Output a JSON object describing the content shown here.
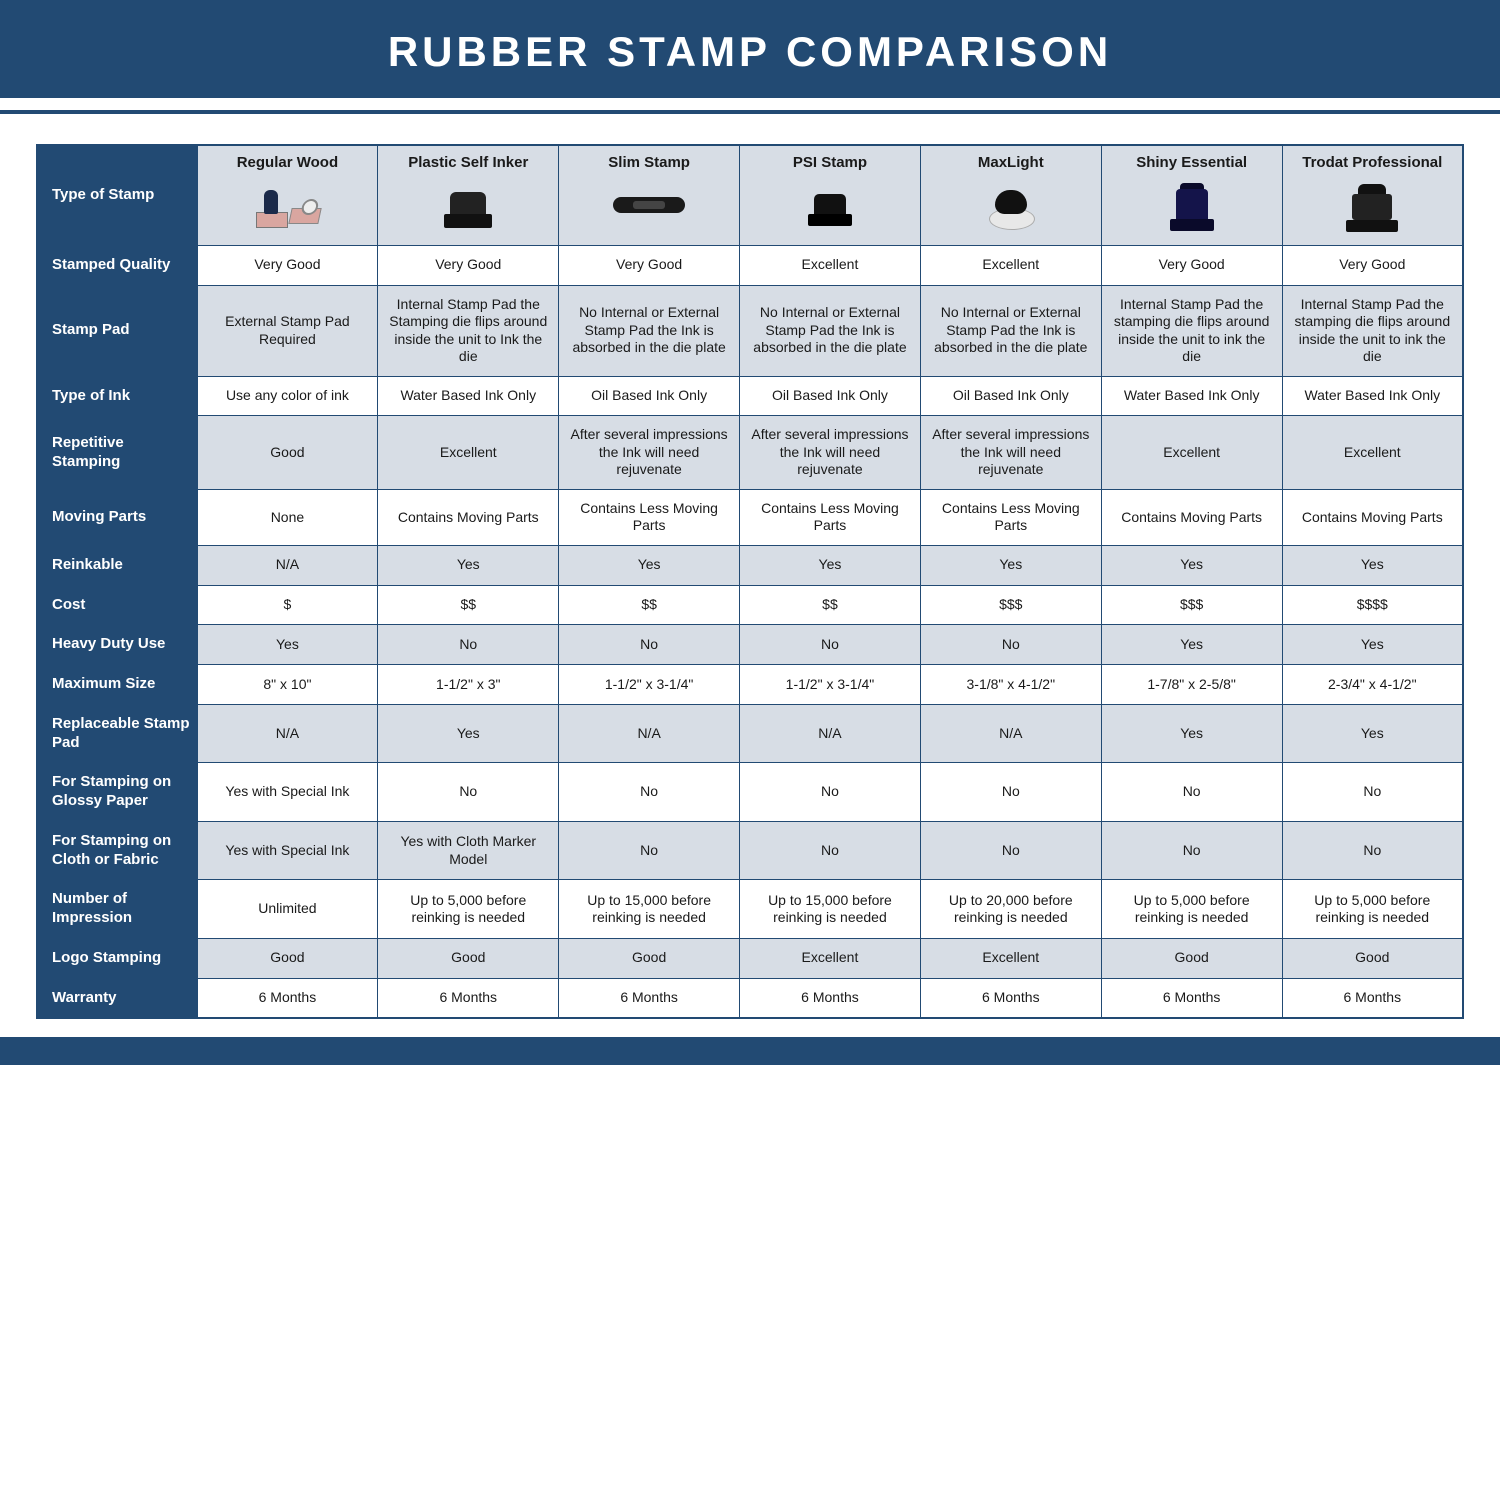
{
  "title": "RUBBER STAMP COMPARISON",
  "colors": {
    "brand": "#224a73",
    "shade": "#d7dde5",
    "plain": "#ffffff",
    "text": "#1a1a1a"
  },
  "typography": {
    "title_fontsize": 42,
    "title_letter_spacing": 4,
    "header_fontsize": 15,
    "cell_fontsize": 14
  },
  "table": {
    "columns": [
      "Regular Wood",
      "Plastic Self Inker",
      "Slim Stamp",
      "PSI Stamp",
      "MaxLight",
      "Shiny Essential",
      "Trodat Professional"
    ],
    "column_icons": [
      "wood-stamp-icon",
      "self-inker-icon",
      "slim-stamp-icon",
      "psi-stamp-icon",
      "maxlight-stamp-icon",
      "shiny-stamp-icon",
      "trodat-stamp-icon"
    ],
    "row_labels": [
      "Type of Stamp",
      "Stamped Quality",
      "Stamp Pad",
      "Type of Ink",
      "Repetitive Stamping",
      "Moving Parts",
      "Reinkable",
      "Cost",
      "Heavy Duty Use",
      "Maximum Size",
      "Replaceable Stamp Pad",
      "For Stamping on Glossy Paper",
      "For Stamping on Cloth or Fabric",
      "Number of Impression",
      "Logo Stamping",
      "Warranty"
    ],
    "shaded_rows": [
      true,
      false,
      true,
      false,
      true,
      false,
      true,
      false,
      true,
      false,
      true,
      false,
      true,
      false,
      true,
      false
    ],
    "rows": [
      [
        "Very Good",
        "Very Good",
        "Very Good",
        "Excellent",
        "Excellent",
        "Very Good",
        "Very Good"
      ],
      [
        "External Stamp Pad Required",
        "Internal Stamp Pad the Stamping die flips around inside the unit to Ink the die",
        "No Internal or External Stamp Pad the Ink is absorbed in the die plate",
        "No Internal or External Stamp Pad the Ink is absorbed in the die plate",
        "No Internal or External Stamp Pad the Ink is absorbed in the die plate",
        "Internal Stamp Pad the stamping die flips around inside the unit to ink the die",
        "Internal Stamp Pad the stamping die flips around inside the unit to ink the die"
      ],
      [
        "Use any color of ink",
        "Water Based Ink Only",
        "Oil Based Ink Only",
        "Oil Based Ink Only",
        "Oil Based Ink Only",
        "Water Based Ink Only",
        "Water Based Ink Only"
      ],
      [
        "Good",
        "Excellent",
        "After several impressions the Ink will need rejuvenate",
        "After several impressions the Ink will need rejuvenate",
        "After several impressions the Ink will need rejuvenate",
        "Excellent",
        "Excellent"
      ],
      [
        "None",
        "Contains Moving Parts",
        "Contains Less Moving Parts",
        "Contains Less Moving Parts",
        "Contains Less Moving Parts",
        "Contains Moving Parts",
        "Contains Moving Parts"
      ],
      [
        "N/A",
        "Yes",
        "Yes",
        "Yes",
        "Yes",
        "Yes",
        "Yes"
      ],
      [
        "$",
        "$$",
        "$$",
        "$$",
        "$$$",
        "$$$",
        "$$$$"
      ],
      [
        "Yes",
        "No",
        "No",
        "No",
        "No",
        "Yes",
        "Yes"
      ],
      [
        "8\" x 10\"",
        "1-1/2\" x 3\"",
        "1-1/2\" x 3-1/4\"",
        "1-1/2\" x 3-1/4\"",
        "3-1/8\" x 4-1/2\"",
        "1-7/8\" x 2-5/8\"",
        "2-3/4\" x 4-1/2\""
      ],
      [
        "N/A",
        "Yes",
        "N/A",
        "N/A",
        "N/A",
        "Yes",
        "Yes"
      ],
      [
        "Yes with Special Ink",
        "No",
        "No",
        "No",
        "No",
        "No",
        "No"
      ],
      [
        "Yes with Special Ink",
        "Yes with Cloth Marker Model",
        "No",
        "No",
        "No",
        "No",
        "No"
      ],
      [
        "Unlimited",
        "Up to 5,000 before reinking is needed",
        "Up to 15,000 before reinking is needed",
        "Up to 15,000 before reinking is needed",
        "Up to 20,000 before reinking is needed",
        "Up to 5,000 before reinking is needed",
        "Up to 5,000 before reinking is needed"
      ],
      [
        "Good",
        "Good",
        "Good",
        "Excellent",
        "Excellent",
        "Good",
        "Good"
      ],
      [
        "6 Months",
        "6 Months",
        "6 Months",
        "6 Months",
        "6 Months",
        "6 Months",
        "6 Months"
      ]
    ]
  }
}
